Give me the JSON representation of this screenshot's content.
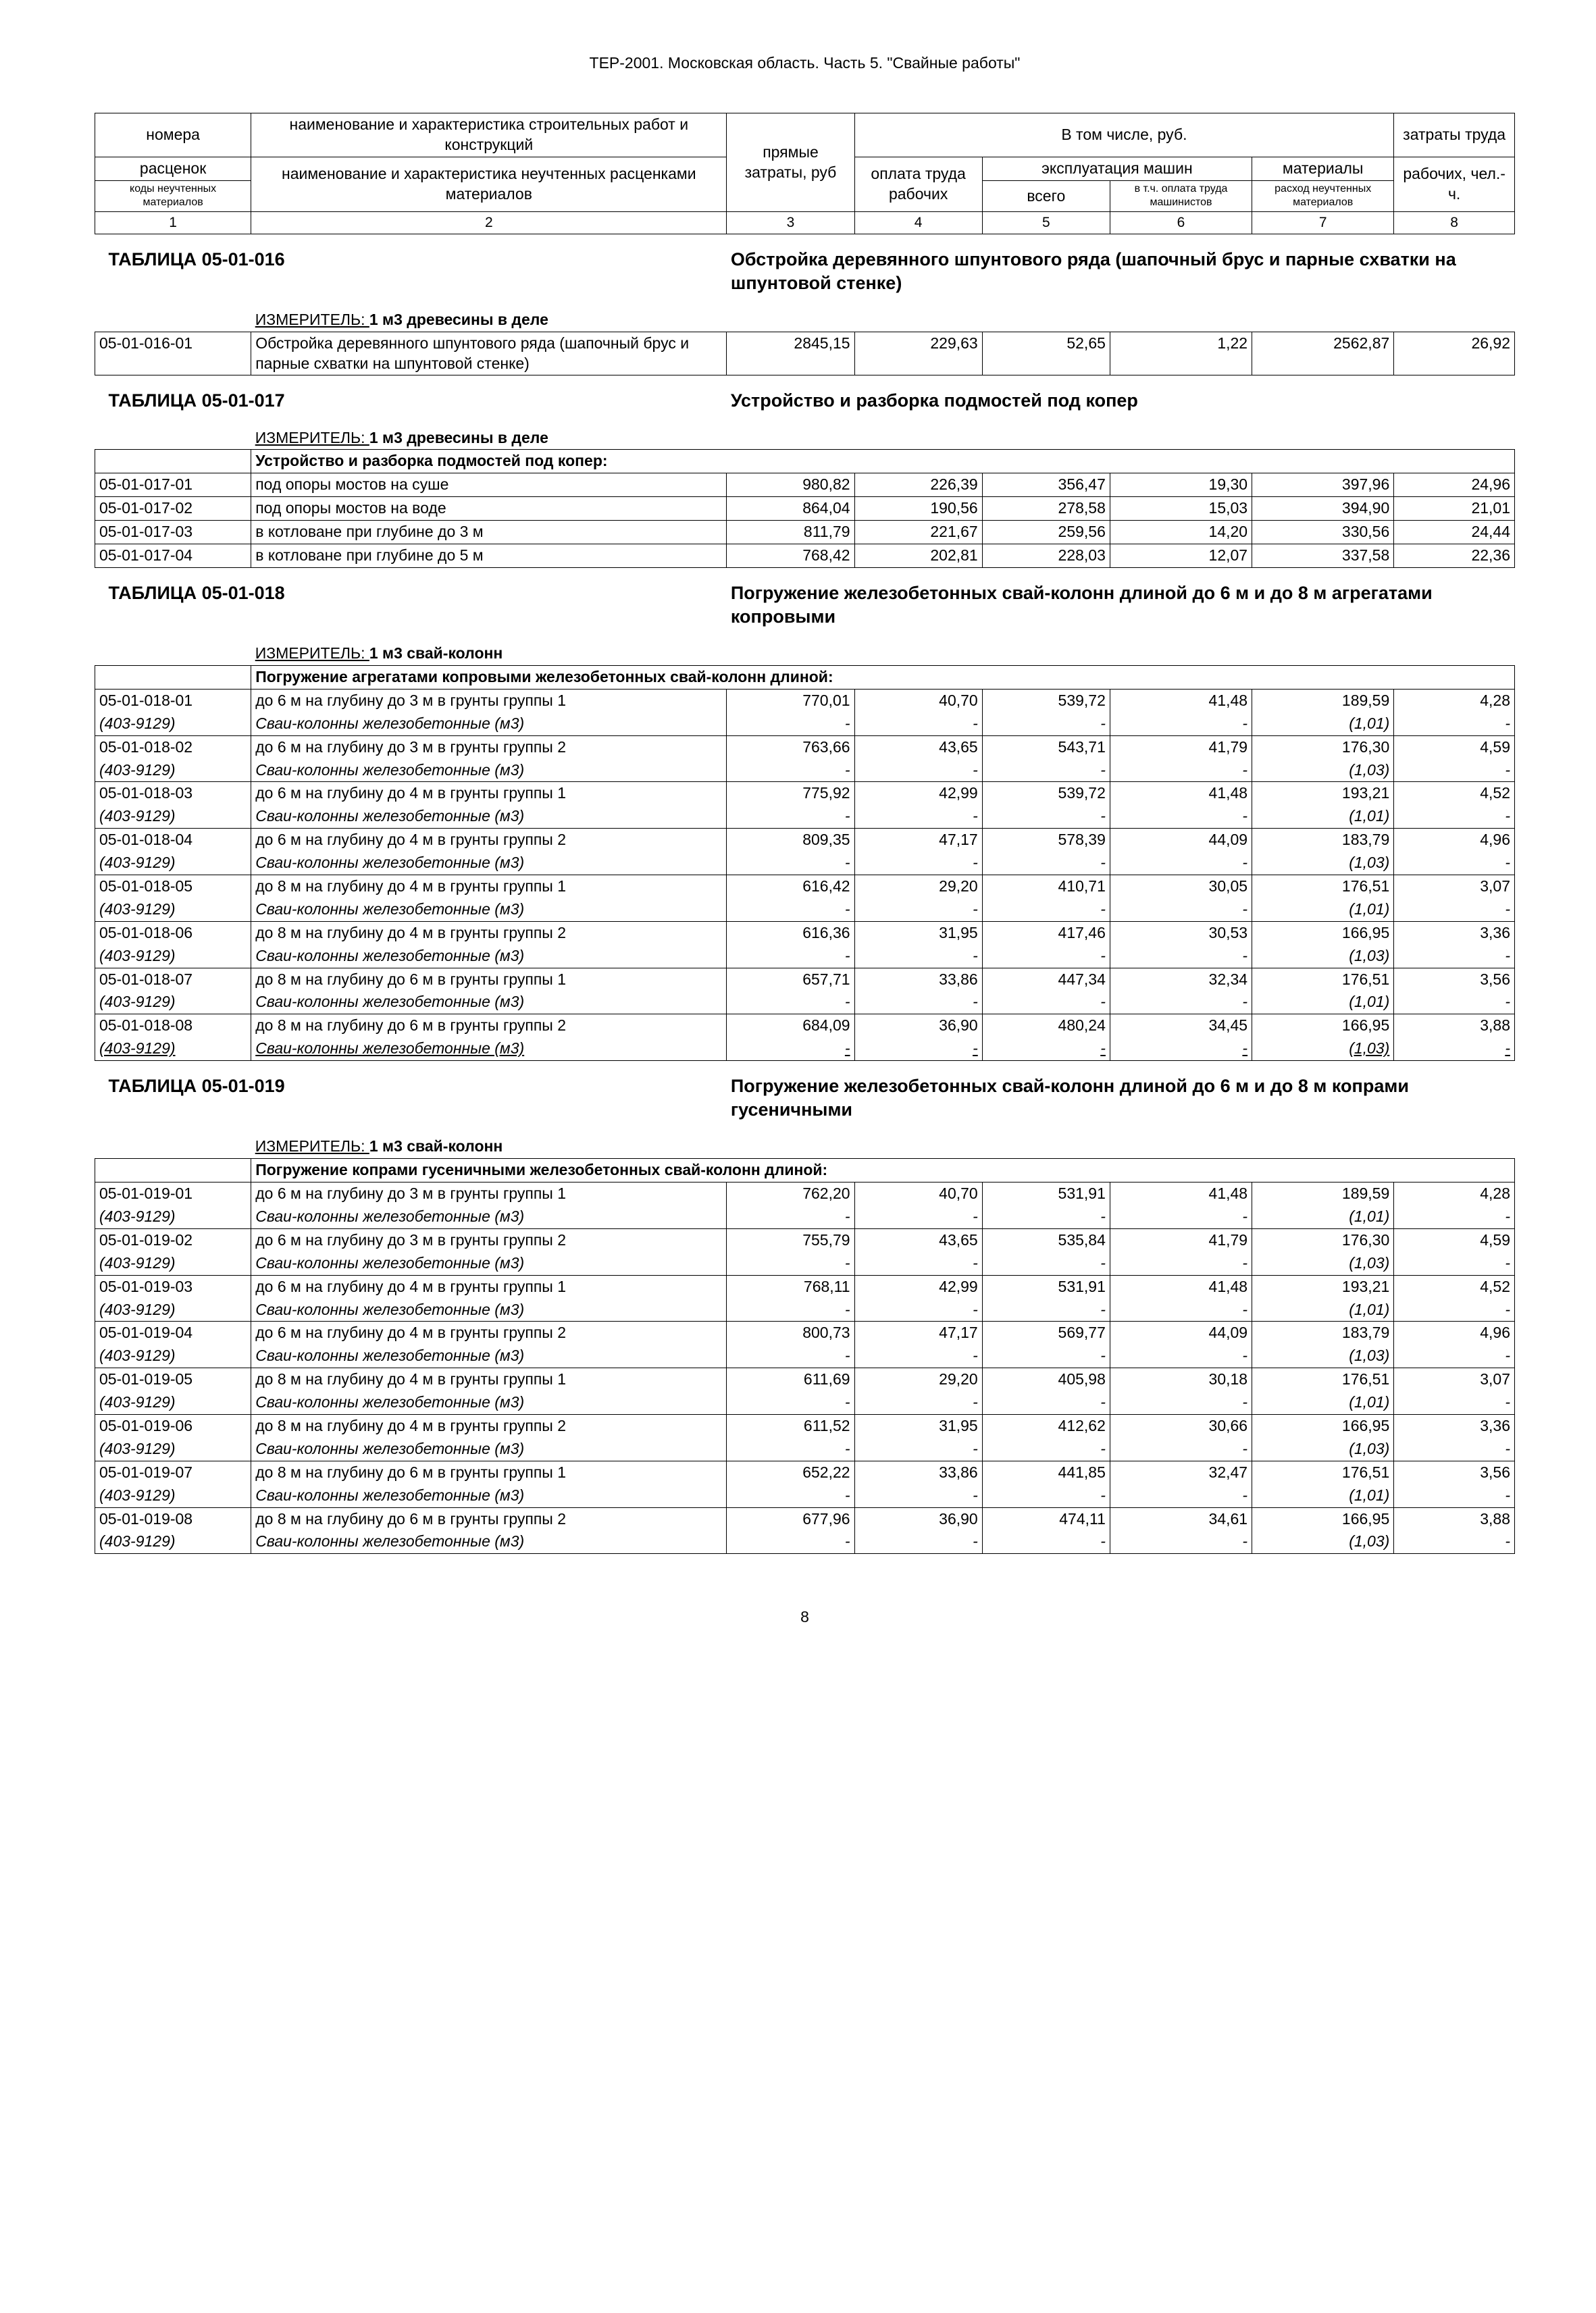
{
  "page_header": "ТЕР-2001. Московская область. Часть 5. \"Свайные работы\"",
  "page_number": "8",
  "header": {
    "c1a": "номера",
    "c1b": "расценок",
    "c1c": "коды неучтенных материалов",
    "c2a": "наименование и характеристика строительных работ и конструкций",
    "c2b": "наименование и характеристика неучтенных расценками материалов",
    "c3": "прямые затраты, руб",
    "c_incl": "В том числе, руб.",
    "c4": "оплата труда рабочих",
    "c_expl": "эксплуатация машин",
    "c5": "всего",
    "c6": "в т.ч. оплата труда машинистов",
    "c7a": "материалы",
    "c7b": "расход неучтенных материалов",
    "c8a": "затраты труда",
    "c8b": "рабочих, чел.-ч.",
    "n1": "1",
    "n2": "2",
    "n3": "3",
    "n4": "4",
    "n5": "5",
    "n6": "6",
    "n7": "7",
    "n8": "8"
  },
  "sections": [
    {
      "title": "ТАБЛИЦА 05-01-016",
      "desc": "Обстройка деревянного шпунтового ряда (шапочный брус и парные схватки на шпунтовой стенке)",
      "measure_label": "ИЗМЕРИТЕЛЬ: ",
      "measure": "1 м3 древесины в деле",
      "header_row": null,
      "rows": [
        {
          "code": "05-01-016-01",
          "name": "Обстройка деревянного шпунтового ряда (шапочный брус и парные схватки на шпунтовой стенке)",
          "v": [
            "2845,15",
            "229,63",
            "52,65",
            "1,22",
            "2562,87",
            "26,92"
          ]
        }
      ]
    },
    {
      "title": "ТАБЛИЦА 05-01-017",
      "desc": "Устройство и разборка подмостей под копер",
      "measure_label": "ИЗМЕРИТЕЛЬ: ",
      "measure": "1 м3 древесины в деле",
      "header_row": "Устройство и разборка подмостей под копер:",
      "rows": [
        {
          "code": "05-01-017-01",
          "name": "под опоры мостов на суше",
          "v": [
            "980,82",
            "226,39",
            "356,47",
            "19,30",
            "397,96",
            "24,96"
          ]
        },
        {
          "code": "05-01-017-02",
          "name": "под опоры мостов на воде",
          "v": [
            "864,04",
            "190,56",
            "278,58",
            "15,03",
            "394,90",
            "21,01"
          ]
        },
        {
          "code": "05-01-017-03",
          "name": "в котловане при глубине до 3 м",
          "v": [
            "811,79",
            "221,67",
            "259,56",
            "14,20",
            "330,56",
            "24,44"
          ]
        },
        {
          "code": "05-01-017-04",
          "name": "в котловане при глубине до 5 м",
          "v": [
            "768,42",
            "202,81",
            "228,03",
            "12,07",
            "337,58",
            "22,36"
          ]
        }
      ]
    },
    {
      "title": "ТАБЛИЦА 05-01-018",
      "desc": "Погружение железобетонных свай-колонн длиной до 6 м и до 8 м агрегатами копровыми",
      "measure_label": "ИЗМЕРИТЕЛЬ: ",
      "measure": "1 м3 свай-колонн",
      "header_row": "Погружение агрегатами копровыми железобетонных свай-колонн длиной:",
      "pairs": [
        {
          "code": "05-01-018-01",
          "name": "до 6 м на глубину до 3 м в грунты группы 1",
          "v": [
            "770,01",
            "40,70",
            "539,72",
            "41,48",
            "189,59",
            "4,28"
          ],
          "mcode": "(403-9129)",
          "mname": "Сваи-колонны железобетонные (м3)",
          "mv": [
            "-",
            "-",
            "-",
            "-",
            "(1,01)",
            "-"
          ]
        },
        {
          "code": "05-01-018-02",
          "name": "до 6 м на глубину до 3 м в грунты группы 2",
          "v": [
            "763,66",
            "43,65",
            "543,71",
            "41,79",
            "176,30",
            "4,59"
          ],
          "mcode": "(403-9129)",
          "mname": "Сваи-колонны железобетонные (м3)",
          "mv": [
            "-",
            "-",
            "-",
            "-",
            "(1,03)",
            "-"
          ]
        },
        {
          "code": "05-01-018-03",
          "name": "до 6 м на глубину до 4 м в грунты группы 1",
          "v": [
            "775,92",
            "42,99",
            "539,72",
            "41,48",
            "193,21",
            "4,52"
          ],
          "mcode": "(403-9129)",
          "mname": "Сваи-колонны железобетонные (м3)",
          "mv": [
            "-",
            "-",
            "-",
            "-",
            "(1,01)",
            "-"
          ]
        },
        {
          "code": "05-01-018-04",
          "name": "до 6 м на глубину до 4 м в грунты группы 2",
          "v": [
            "809,35",
            "47,17",
            "578,39",
            "44,09",
            "183,79",
            "4,96"
          ],
          "mcode": "(403-9129)",
          "mname": "Сваи-колонны железобетонные (м3)",
          "mv": [
            "-",
            "-",
            "-",
            "-",
            "(1,03)",
            "-"
          ]
        },
        {
          "code": "05-01-018-05",
          "name": "до 8 м на глубину до 4 м в грунты группы 1",
          "v": [
            "616,42",
            "29,20",
            "410,71",
            "30,05",
            "176,51",
            "3,07"
          ],
          "mcode": "(403-9129)",
          "mname": "Сваи-колонны железобетонные (м3)",
          "mv": [
            "-",
            "-",
            "-",
            "-",
            "(1,01)",
            "-"
          ]
        },
        {
          "code": "05-01-018-06",
          "name": "до 8 м на глубину до 4 м в грунты группы 2",
          "v": [
            "616,36",
            "31,95",
            "417,46",
            "30,53",
            "166,95",
            "3,36"
          ],
          "mcode": "(403-9129)",
          "mname": "Сваи-колонны железобетонные (м3)",
          "mv": [
            "-",
            "-",
            "-",
            "-",
            "(1,03)",
            "-"
          ]
        },
        {
          "code": "05-01-018-07",
          "name": "до 8 м на глубину до 6 м в грунты группы 1",
          "v": [
            "657,71",
            "33,86",
            "447,34",
            "32,34",
            "176,51",
            "3,56"
          ],
          "mcode": "(403-9129)",
          "mname": "Сваи-колонны железобетонные (м3)",
          "mv": [
            "-",
            "-",
            "-",
            "-",
            "(1,01)",
            "-"
          ]
        },
        {
          "code": "05-01-018-08",
          "name": "до 8 м на глубину до 6 м в грунты группы 2",
          "v": [
            "684,09",
            "36,90",
            "480,24",
            "34,45",
            "166,95",
            "3,88"
          ],
          "mcode": "(403-9129)",
          "mname": "Сваи-колонны железобетонные (м3)",
          "mv": [
            "-",
            "-",
            "-",
            "-",
            "(1,03)",
            "-"
          ]
        }
      ]
    },
    {
      "title": "ТАБЛИЦА 05-01-019",
      "desc": "Погружение железобетонных свай-колонн длиной до 6 м и до 8 м копрами гусеничными",
      "measure_label": "ИЗМЕРИТЕЛЬ: ",
      "measure": "1 м3 свай-колонн",
      "header_row": "Погружение копрами гусеничными железобетонных свай-колонн длиной:",
      "compact_pairs": [
        {
          "code": "05-01-019-01",
          "name": "до 6 м на глубину до 3 м в грунты группы 1",
          "v": [
            "762,20",
            "40,70",
            "531,91",
            "41,48",
            "189,59",
            "4,28"
          ],
          "mcode": "(403-9129)",
          "mname": "Сваи-колонны железобетонные (м3)",
          "mv": [
            "-",
            "-",
            "-",
            "-",
            "(1,01)",
            "-"
          ]
        },
        {
          "code": "05-01-019-02",
          "name": "до 6 м на глубину до 3 м в грунты группы 2",
          "v": [
            "755,79",
            "43,65",
            "535,84",
            "41,79",
            "176,30",
            "4,59"
          ],
          "mcode": "(403-9129)",
          "mname": "Сваи-колонны железобетонные (м3)",
          "mv": [
            "-",
            "-",
            "-",
            "-",
            "(1,03)",
            "-"
          ]
        },
        {
          "code": "05-01-019-03",
          "name": "до 6 м на глубину до 4 м в грунты группы 1",
          "v": [
            "768,11",
            "42,99",
            "531,91",
            "41,48",
            "193,21",
            "4,52"
          ],
          "mcode": "(403-9129)",
          "mname": "Сваи-колонны железобетонные (м3)",
          "mv": [
            "-",
            "-",
            "-",
            "-",
            "(1,01)",
            "-"
          ]
        },
        {
          "code": "05-01-019-04",
          "name": "до 6 м на глубину до 4 м в грунты группы 2",
          "v": [
            "800,73",
            "47,17",
            "569,77",
            "44,09",
            "183,79",
            "4,96"
          ],
          "mcode": "(403-9129)",
          "mname": "Сваи-колонны железобетонные (м3)",
          "mv": [
            "-",
            "-",
            "-",
            "-",
            "(1,03)",
            "-"
          ]
        },
        {
          "code": "05-01-019-05",
          "name": "до 8 м на глубину до 4 м в грунты группы 1",
          "v": [
            "611,69",
            "29,20",
            "405,98",
            "30,18",
            "176,51",
            "3,07"
          ],
          "mcode": "(403-9129)",
          "mname": "Сваи-колонны железобетонные (м3)",
          "mv": [
            "-",
            "-",
            "-",
            "-",
            "(1,01)",
            "-"
          ]
        },
        {
          "code": "05-01-019-06",
          "name": "до 8 м на глубину до 4 м в грунты группы 2",
          "v": [
            "611,52",
            "31,95",
            "412,62",
            "30,66",
            "166,95",
            "3,36"
          ],
          "mcode": "(403-9129)",
          "mname": "Сваи-колонны железобетонные (м3)",
          "mv": [
            "-",
            "-",
            "-",
            "-",
            "(1,03)",
            "-"
          ]
        },
        {
          "code": "05-01-019-07",
          "name": "до 8 м на глубину до 6 м в грунты группы 1",
          "v": [
            "652,22",
            "33,86",
            "441,85",
            "32,47",
            "176,51",
            "3,56"
          ],
          "mcode": "(403-9129)",
          "mname": "Сваи-колонны железобетонные (м3)",
          "mv": [
            "-",
            "-",
            "-",
            "-",
            "(1,01)",
            "-"
          ]
        },
        {
          "code": "05-01-019-08",
          "name": "до 8 м на глубину до 6 м в грунты группы 2",
          "v": [
            "677,96",
            "36,90",
            "474,11",
            "34,61",
            "166,95",
            "3,88"
          ],
          "mcode": "(403-9129)",
          "mname": "Сваи-колонны железобетонные (м3)",
          "mv": [
            "-",
            "-",
            "-",
            "-",
            "(1,03)",
            "-"
          ]
        }
      ]
    }
  ]
}
